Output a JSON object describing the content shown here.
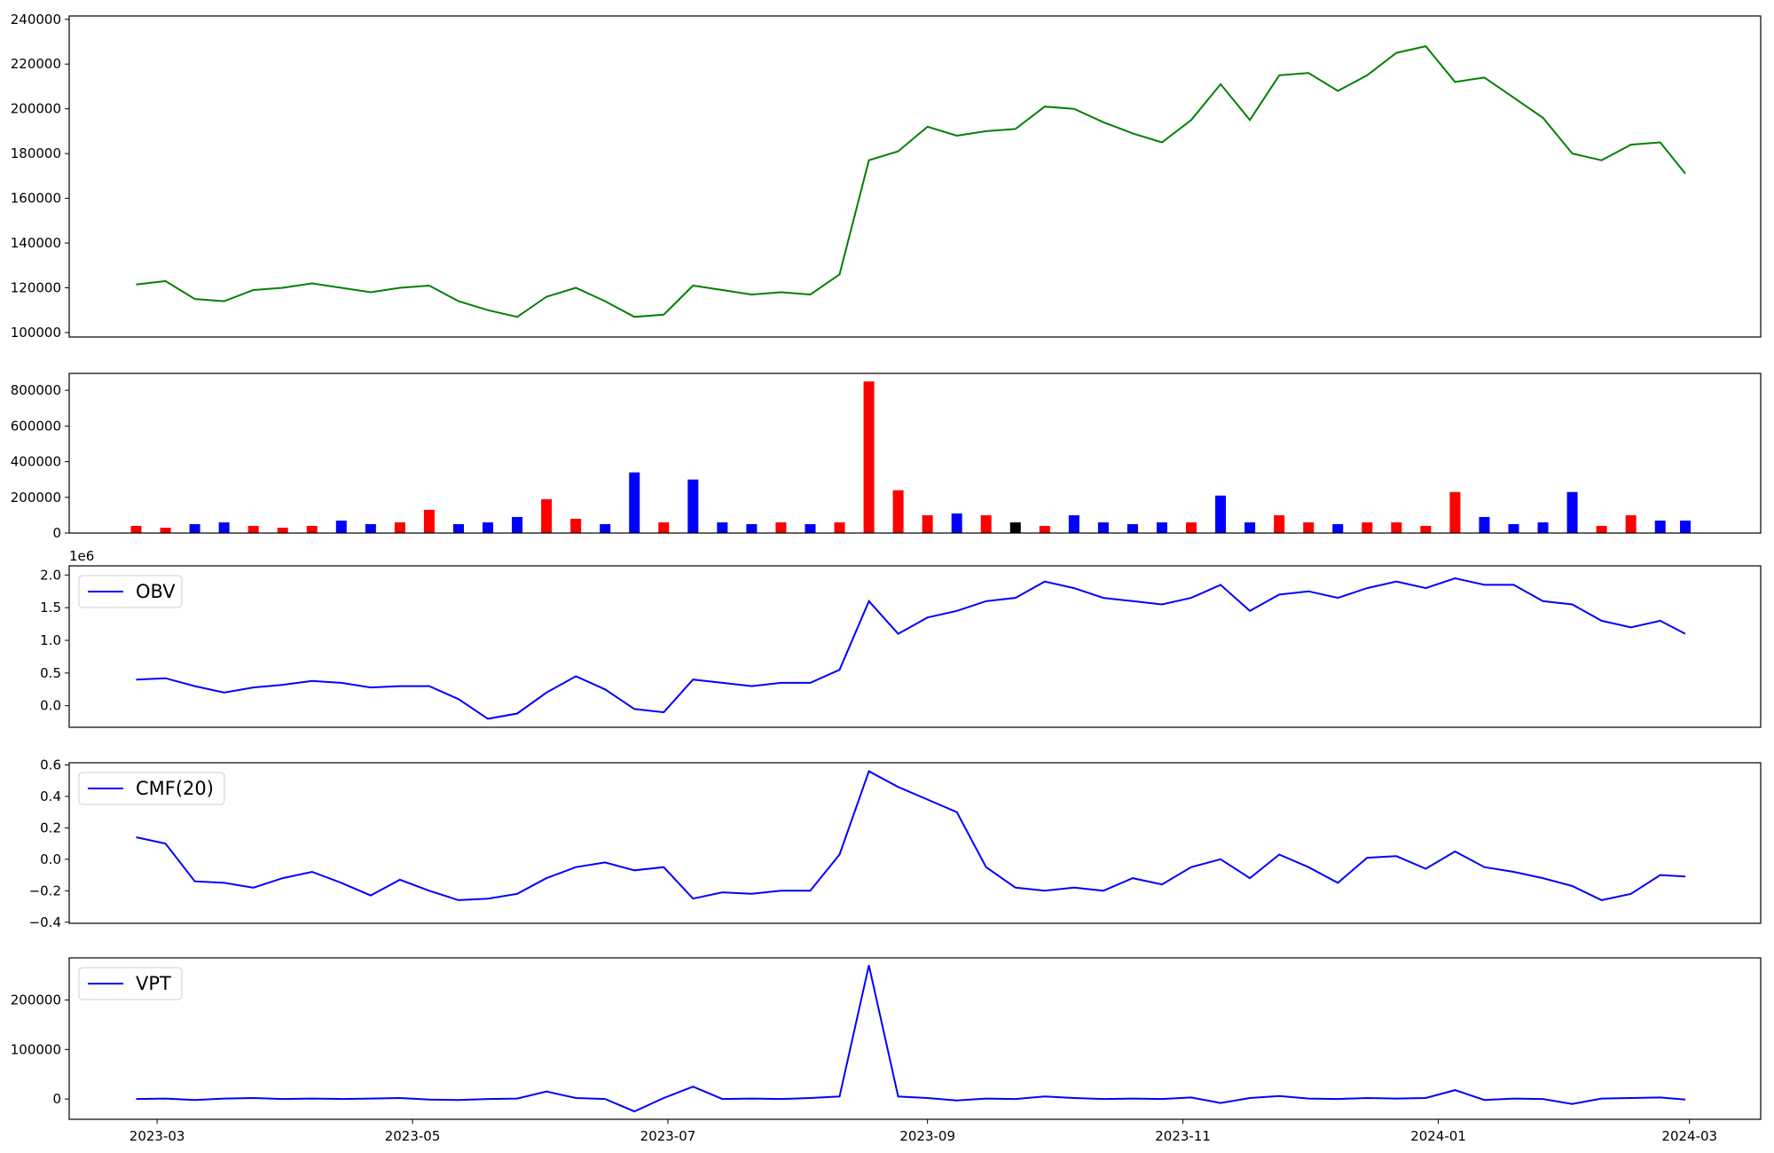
{
  "chart_data": [
    {
      "type": "line",
      "x": [
        "2023-02-24",
        "2023-03-03",
        "2023-03-10",
        "2023-03-17",
        "2023-03-24",
        "2023-03-31",
        "2023-04-07",
        "2023-04-14",
        "2023-04-21",
        "2023-04-28",
        "2023-05-05",
        "2023-05-12",
        "2023-05-19",
        "2023-05-26",
        "2023-06-02",
        "2023-06-09",
        "2023-06-16",
        "2023-06-23",
        "2023-06-30",
        "2023-07-07",
        "2023-07-14",
        "2023-07-21",
        "2023-07-28",
        "2023-08-04",
        "2023-08-11",
        "2023-08-18",
        "2023-08-25",
        "2023-09-01",
        "2023-09-08",
        "2023-09-15",
        "2023-09-22",
        "2023-09-29",
        "2023-10-06",
        "2023-10-13",
        "2023-10-20",
        "2023-10-27",
        "2023-11-03",
        "2023-11-10",
        "2023-11-17",
        "2023-11-24",
        "2023-12-01",
        "2023-12-08",
        "2023-12-15",
        "2023-12-22",
        "2023-12-29",
        "2024-01-05",
        "2024-01-12",
        "2024-01-19",
        "2024-01-26",
        "2024-02-02",
        "2024-02-09",
        "2024-02-16",
        "2024-02-23",
        "2024-02-29"
      ],
      "series": [
        {
          "color": "#008000",
          "values": [
            121500,
            123000,
            115000,
            114000,
            119000,
            120000,
            122000,
            120000,
            118000,
            120000,
            121000,
            114000,
            110000,
            107000,
            116000,
            120000,
            114000,
            107000,
            108000,
            121000,
            119000,
            117000,
            118000,
            117000,
            126000,
            177000,
            181000,
            192000,
            188000,
            190000,
            191000,
            201000,
            200000,
            194000,
            189000,
            185000,
            195000,
            211000,
            195000,
            215000,
            216000,
            208000,
            215000,
            225000,
            228000,
            212000,
            214000,
            205000,
            196000,
            180000,
            177000,
            184000,
            185000,
            171000
          ]
        }
      ],
      "xlim": [
        "2023-02-08",
        "2024-03-18"
      ],
      "ylim": [
        98000,
        241500
      ],
      "yticks": [
        100000,
        120000,
        140000,
        160000,
        180000,
        200000,
        220000,
        240000
      ]
    },
    {
      "type": "bar",
      "x": [
        "2023-02-24",
        "2023-03-03",
        "2023-03-10",
        "2023-03-17",
        "2023-03-24",
        "2023-03-31",
        "2023-04-07",
        "2023-04-14",
        "2023-04-21",
        "2023-04-28",
        "2023-05-05",
        "2023-05-12",
        "2023-05-19",
        "2023-05-26",
        "2023-06-02",
        "2023-06-09",
        "2023-06-16",
        "2023-06-23",
        "2023-06-30",
        "2023-07-07",
        "2023-07-14",
        "2023-07-21",
        "2023-07-28",
        "2023-08-04",
        "2023-08-11",
        "2023-08-18",
        "2023-08-25",
        "2023-09-01",
        "2023-09-08",
        "2023-09-15",
        "2023-09-22",
        "2023-09-29",
        "2023-10-06",
        "2023-10-13",
        "2023-10-20",
        "2023-10-27",
        "2023-11-03",
        "2023-11-10",
        "2023-11-17",
        "2023-11-24",
        "2023-12-01",
        "2023-12-08",
        "2023-12-15",
        "2023-12-22",
        "2023-12-29",
        "2024-01-05",
        "2024-01-12",
        "2024-01-19",
        "2024-01-26",
        "2024-02-02",
        "2024-02-09",
        "2024-02-16",
        "2024-02-23",
        "2024-02-29"
      ],
      "series": [
        {
          "values": [
            40000,
            30000,
            50000,
            60000,
            40000,
            30000,
            40000,
            70000,
            50000,
            60000,
            130000,
            50000,
            60000,
            90000,
            190000,
            80000,
            50000,
            340000,
            60000,
            300000,
            60000,
            50000,
            60000,
            50000,
            60000,
            850000,
            240000,
            100000,
            110000,
            100000,
            60000,
            40000,
            100000,
            60000,
            50000,
            60000,
            60000,
            210000,
            60000,
            100000,
            60000,
            50000,
            60000,
            60000,
            40000,
            230000,
            90000,
            50000,
            60000,
            230000,
            40000,
            100000,
            70000,
            70000
          ],
          "colors": [
            "red",
            "red",
            "blue",
            "blue",
            "red",
            "red",
            "red",
            "blue",
            "blue",
            "red",
            "red",
            "blue",
            "blue",
            "blue",
            "red",
            "red",
            "blue",
            "blue",
            "red",
            "blue",
            "blue",
            "blue",
            "red",
            "blue",
            "red",
            "red",
            "red",
            "red",
            "blue",
            "red",
            "black",
            "red",
            "blue",
            "blue",
            "blue",
            "blue",
            "red",
            "blue",
            "blue",
            "red",
            "red",
            "blue",
            "red",
            "red",
            "red",
            "red",
            "blue",
            "blue",
            "blue",
            "blue",
            "red",
            "red",
            "blue",
            "blue"
          ]
        }
      ],
      "xlim": [
        "2023-02-08",
        "2024-03-18"
      ],
      "ylim": [
        0,
        895000
      ],
      "yticks": [
        0,
        200000,
        400000,
        600000,
        800000
      ]
    },
    {
      "type": "line",
      "x": [
        "2023-02-24",
        "2023-03-03",
        "2023-03-10",
        "2023-03-17",
        "2023-03-24",
        "2023-03-31",
        "2023-04-07",
        "2023-04-14",
        "2023-04-21",
        "2023-04-28",
        "2023-05-05",
        "2023-05-12",
        "2023-05-19",
        "2023-05-26",
        "2023-06-02",
        "2023-06-09",
        "2023-06-16",
        "2023-06-23",
        "2023-06-30",
        "2023-07-07",
        "2023-07-14",
        "2023-07-21",
        "2023-07-28",
        "2023-08-04",
        "2023-08-11",
        "2023-08-18",
        "2023-08-25",
        "2023-09-01",
        "2023-09-08",
        "2023-09-15",
        "2023-09-22",
        "2023-09-29",
        "2023-10-06",
        "2023-10-13",
        "2023-10-20",
        "2023-10-27",
        "2023-11-03",
        "2023-11-10",
        "2023-11-17",
        "2023-11-24",
        "2023-12-01",
        "2023-12-08",
        "2023-12-15",
        "2023-12-22",
        "2023-12-29",
        "2024-01-05",
        "2024-01-12",
        "2024-01-19",
        "2024-01-26",
        "2024-02-02",
        "2024-02-09",
        "2024-02-16",
        "2024-02-23",
        "2024-02-29"
      ],
      "series": [
        {
          "name": "OBV",
          "color": "#0000ff",
          "values": [
            400000,
            420000,
            300000,
            200000,
            280000,
            320000,
            380000,
            350000,
            280000,
            300000,
            300000,
            100000,
            -200000,
            -120000,
            200000,
            450000,
            250000,
            -50000,
            -100000,
            400000,
            350000,
            300000,
            350000,
            350000,
            550000,
            1600000,
            1100000,
            1350000,
            1450000,
            1600000,
            1650000,
            1900000,
            1800000,
            1650000,
            1600000,
            1550000,
            1650000,
            1850000,
            1450000,
            1700000,
            1750000,
            1650000,
            1800000,
            1900000,
            1800000,
            1950000,
            1850000,
            1850000,
            1600000,
            1550000,
            1300000,
            1200000,
            1300000,
            1100000
          ]
        }
      ],
      "xlim": [
        "2023-02-08",
        "2024-03-18"
      ],
      "ylim": [
        -330000,
        2140000
      ],
      "yticks": [
        {
          "value": 0,
          "label": "0.0"
        },
        {
          "value": 500000,
          "label": "0.5"
        },
        {
          "value": 1000000,
          "label": "1.0"
        },
        {
          "value": 1500000,
          "label": "1.5"
        },
        {
          "value": 2000000,
          "label": "2.0"
        }
      ],
      "offset_label": "1e6",
      "legend": "upper left"
    },
    {
      "type": "line",
      "x": [
        "2023-02-24",
        "2023-03-03",
        "2023-03-10",
        "2023-03-17",
        "2023-03-24",
        "2023-03-31",
        "2023-04-07",
        "2023-04-14",
        "2023-04-21",
        "2023-04-28",
        "2023-05-05",
        "2023-05-12",
        "2023-05-19",
        "2023-05-26",
        "2023-06-02",
        "2023-06-09",
        "2023-06-16",
        "2023-06-23",
        "2023-06-30",
        "2023-07-07",
        "2023-07-14",
        "2023-07-21",
        "2023-07-28",
        "2023-08-04",
        "2023-08-11",
        "2023-08-18",
        "2023-08-25",
        "2023-09-01",
        "2023-09-08",
        "2023-09-15",
        "2023-09-22",
        "2023-09-29",
        "2023-10-06",
        "2023-10-13",
        "2023-10-20",
        "2023-10-27",
        "2023-11-03",
        "2023-11-10",
        "2023-11-17",
        "2023-11-24",
        "2023-12-01",
        "2023-12-08",
        "2023-12-15",
        "2023-12-22",
        "2023-12-29",
        "2024-01-05",
        "2024-01-12",
        "2024-01-19",
        "2024-01-26",
        "2024-02-02",
        "2024-02-09",
        "2024-02-16",
        "2024-02-23",
        "2024-02-29"
      ],
      "series": [
        {
          "name": "CMF(20)",
          "color": "#0000ff",
          "values": [
            0.14,
            0.1,
            -0.14,
            -0.15,
            -0.18,
            -0.12,
            -0.08,
            -0.15,
            -0.23,
            -0.13,
            -0.2,
            -0.26,
            -0.25,
            -0.22,
            -0.12,
            -0.05,
            -0.02,
            -0.07,
            -0.05,
            -0.25,
            -0.21,
            -0.22,
            -0.2,
            -0.2,
            0.03,
            0.56,
            0.46,
            0.38,
            0.3,
            -0.05,
            -0.18,
            -0.2,
            -0.18,
            -0.2,
            -0.12,
            -0.16,
            -0.05,
            0.0,
            -0.12,
            0.03,
            -0.05,
            -0.15,
            0.01,
            0.02,
            -0.06,
            0.05,
            -0.05,
            -0.08,
            -0.12,
            -0.17,
            -0.26,
            -0.22,
            -0.1,
            -0.11
          ]
        }
      ],
      "xlim": [
        "2023-02-08",
        "2024-03-18"
      ],
      "ylim": [
        -0.407,
        0.614
      ],
      "yticks": [
        {
          "value": -0.4,
          "label": "−0.4"
        },
        {
          "value": -0.2,
          "label": "−0.2"
        },
        {
          "value": 0,
          "label": "0.0"
        },
        0.2,
        0.4,
        0.6
      ],
      "legend": "upper left"
    },
    {
      "type": "line",
      "x": [
        "2023-02-24",
        "2023-03-03",
        "2023-03-10",
        "2023-03-17",
        "2023-03-24",
        "2023-03-31",
        "2023-04-07",
        "2023-04-14",
        "2023-04-21",
        "2023-04-28",
        "2023-05-05",
        "2023-05-12",
        "2023-05-19",
        "2023-05-26",
        "2023-06-02",
        "2023-06-09",
        "2023-06-16",
        "2023-06-23",
        "2023-06-30",
        "2023-07-07",
        "2023-07-14",
        "2023-07-21",
        "2023-07-28",
        "2023-08-04",
        "2023-08-11",
        "2023-08-18",
        "2023-08-25",
        "2023-09-01",
        "2023-09-08",
        "2023-09-15",
        "2023-09-22",
        "2023-09-29",
        "2023-10-06",
        "2023-10-13",
        "2023-10-20",
        "2023-10-27",
        "2023-11-03",
        "2023-11-10",
        "2023-11-17",
        "2023-11-24",
        "2023-12-01",
        "2023-12-08",
        "2023-12-15",
        "2023-12-22",
        "2023-12-29",
        "2024-01-05",
        "2024-01-12",
        "2024-01-19",
        "2024-01-26",
        "2024-02-02",
        "2024-02-09",
        "2024-02-16",
        "2024-02-23",
        "2024-02-29"
      ],
      "series": [
        {
          "name": "VPT",
          "color": "#0000ff",
          "values": [
            0,
            1000,
            -2000,
            1000,
            2000,
            0,
            1000,
            0,
            1000,
            2000,
            -1000,
            -2000,
            0,
            1000,
            15000,
            2000,
            0,
            -25000,
            2000,
            25000,
            0,
            1000,
            0,
            2000,
            5000,
            270000,
            5000,
            2000,
            -3000,
            1000,
            0,
            5000,
            2000,
            0,
            1000,
            0,
            3000,
            -8000,
            2000,
            6000,
            1000,
            0,
            2000,
            1000,
            2000,
            18000,
            -2000,
            1000,
            0,
            -10000,
            1000,
            2000,
            3000,
            -1000
          ]
        }
      ],
      "xlim": [
        "2023-02-08",
        "2024-03-18"
      ],
      "ylim": [
        -41000,
        285000
      ],
      "yticks": [
        0,
        100000,
        200000
      ],
      "xticks": [
        {
          "value": "2023-03-01",
          "label": "2023-03"
        },
        {
          "value": "2023-05-01",
          "label": "2023-05"
        },
        {
          "value": "2023-07-01",
          "label": "2023-07"
        },
        {
          "value": "2023-09-01",
          "label": "2023-09"
        },
        {
          "value": "2023-11-01",
          "label": "2023-11"
        },
        {
          "value": "2024-01-01",
          "label": "2024-01"
        },
        {
          "value": "2024-03-01",
          "label": "2024-03"
        }
      ],
      "legend": "upper left"
    }
  ]
}
